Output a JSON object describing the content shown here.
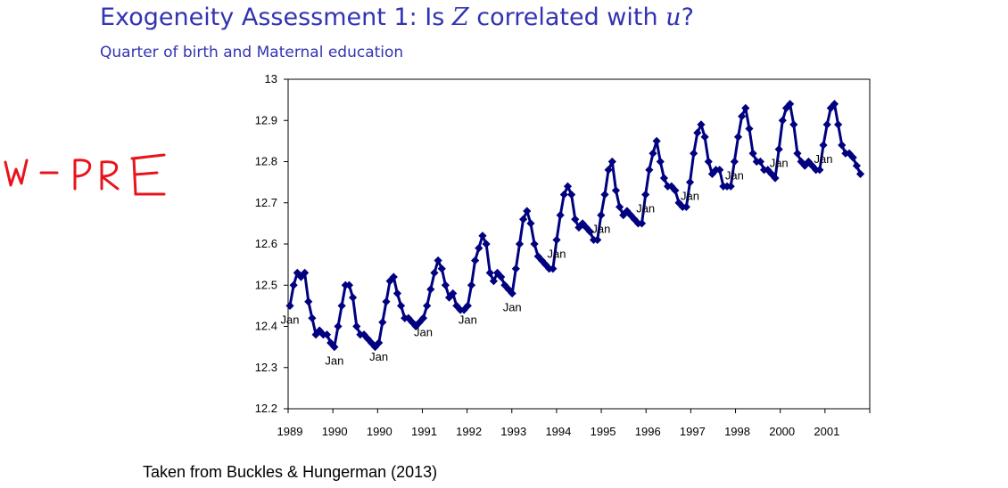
{
  "slide": {
    "title_prefix": "Exogeneity Assessment 1: Is ",
    "title_var_z": "Z",
    "title_middle": " correlated with ",
    "title_var_u": "u",
    "title_suffix": "?",
    "subtitle": "Quarter of birth and Maternal education",
    "caption": "Taken from Buckles & Hungerman (2013)",
    "handwritten_note": "W-PRE",
    "handwritten_color": "#e8141c",
    "title_color": "#3333b2"
  },
  "chart_data": {
    "type": "line",
    "series_color": "#000080",
    "ylim": [
      12.2,
      13.0
    ],
    "y_ticks": [
      "12.2",
      "12.3",
      "12.4",
      "12.5",
      "12.6",
      "12.7",
      "12.8",
      "12.9",
      "13"
    ],
    "x_tick_labels": [
      "1989",
      "1990",
      "1990",
      "1991",
      "1992",
      "1993",
      "1994",
      "1995",
      "1996",
      "1997",
      "1998",
      "2000",
      "2001"
    ],
    "point_label": "Jan",
    "grid": false,
    "legend": "none",
    "values": [
      12.45,
      12.5,
      12.53,
      12.52,
      12.53,
      12.46,
      12.42,
      12.38,
      12.39,
      12.38,
      12.38,
      12.36,
      12.35,
      12.4,
      12.45,
      12.5,
      12.5,
      12.47,
      12.4,
      12.38,
      12.38,
      12.37,
      12.36,
      12.35,
      12.36,
      12.41,
      12.46,
      12.51,
      12.52,
      12.48,
      12.45,
      12.42,
      12.42,
      12.41,
      12.4,
      12.41,
      12.42,
      12.45,
      12.49,
      12.53,
      12.56,
      12.54,
      12.5,
      12.47,
      12.48,
      12.45,
      12.44,
      12.44,
      12.45,
      12.5,
      12.56,
      12.59,
      12.62,
      12.6,
      12.53,
      12.51,
      12.53,
      12.52,
      12.5,
      12.49,
      12.48,
      12.54,
      12.6,
      12.66,
      12.68,
      12.65,
      12.6,
      12.57,
      12.56,
      12.55,
      12.54,
      12.54,
      12.61,
      12.67,
      12.72,
      12.74,
      12.72,
      12.66,
      12.64,
      12.65,
      12.64,
      12.63,
      12.61,
      12.61,
      12.67,
      12.72,
      12.78,
      12.8,
      12.73,
      12.69,
      12.67,
      12.68,
      12.67,
      12.66,
      12.65,
      12.65,
      12.72,
      12.78,
      12.82,
      12.85,
      12.8,
      12.76,
      12.74,
      12.74,
      12.73,
      12.7,
      12.69,
      12.69,
      12.75,
      12.82,
      12.87,
      12.89,
      12.86,
      12.8,
      12.77,
      12.78,
      12.78,
      12.74,
      12.74,
      12.74,
      12.8,
      12.86,
      12.91,
      12.93,
      12.88,
      12.82,
      12.8,
      12.8,
      12.78,
      12.78,
      12.77,
      12.76,
      12.83,
      12.9,
      12.93,
      12.94,
      12.89,
      12.82,
      12.8,
      12.79,
      12.8,
      12.79,
      12.78,
      12.78,
      12.84,
      12.89,
      12.93,
      12.94,
      12.89,
      12.84,
      12.82,
      12.82,
      12.81,
      12.79,
      12.77
    ]
  }
}
